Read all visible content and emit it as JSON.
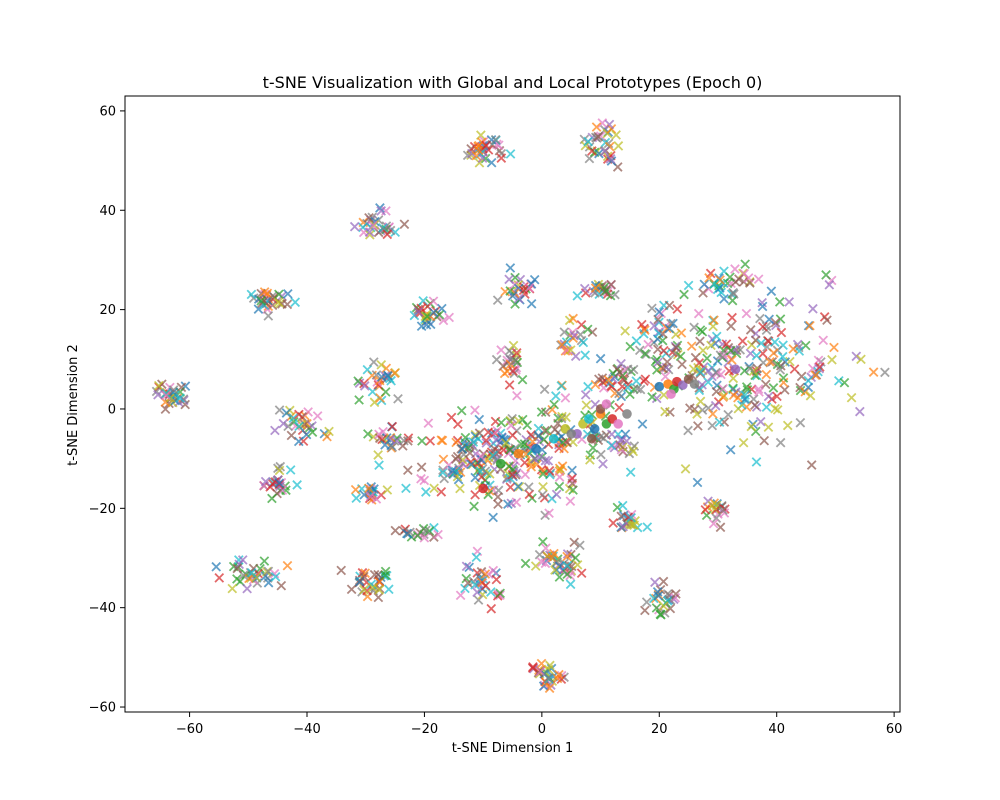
{
  "chart_data": {
    "type": "scatter",
    "title": "t-SNE Visualization with Global and Local Prototypes (Epoch 0)",
    "xlabel": "t-SNE Dimension 1",
    "ylabel": "t-SNE Dimension 2",
    "xlim": [
      -71,
      61
    ],
    "ylim": [
      -61,
      63
    ],
    "xticks": [
      -60,
      -40,
      -20,
      0,
      20,
      40,
      60
    ],
    "yticks": [
      -60,
      -40,
      -20,
      0,
      20,
      40,
      60
    ],
    "xtick_labels": [
      "−60",
      "−40",
      "−20",
      "0",
      "20",
      "40",
      "60"
    ],
    "ytick_labels": [
      "−60",
      "−40",
      "−20",
      "0",
      "20",
      "40",
      "60"
    ],
    "grid": false,
    "marker_local": "x",
    "marker_global": "o",
    "alpha": 0.7,
    "colors": [
      "#1f77b4",
      "#ff7f0e",
      "#2ca02c",
      "#d62728",
      "#9467bd",
      "#8c564b",
      "#e377c2",
      "#7f7f7f",
      "#bcbd22",
      "#17becf"
    ],
    "local_clusters": [
      {
        "cx": -9.5,
        "cy": 52.5,
        "sx": 1.5,
        "sy": 1.6,
        "n": 36
      },
      {
        "cx": 10.5,
        "cy": 53.5,
        "sx": 1.5,
        "sy": 2.4,
        "n": 34
      },
      {
        "cx": -28.5,
        "cy": 37.0,
        "sx": 2.2,
        "sy": 1.2,
        "n": 30
      },
      {
        "cx": -46.0,
        "cy": 22.0,
        "sx": 2.0,
        "sy": 1.6,
        "n": 30
      },
      {
        "cx": -63.0,
        "cy": 3.0,
        "sx": 1.6,
        "sy": 1.5,
        "n": 32
      },
      {
        "cx": -28.0,
        "cy": 6.0,
        "sx": 2.0,
        "sy": 1.8,
        "n": 30
      },
      {
        "cx": -41.0,
        "cy": -3.0,
        "sx": 1.8,
        "sy": 1.6,
        "n": 30
      },
      {
        "cx": -45.0,
        "cy": -15.0,
        "sx": 1.3,
        "sy": 1.3,
        "n": 26
      },
      {
        "cx": -48.0,
        "cy": -33.0,
        "sx": 2.4,
        "sy": 1.5,
        "n": 36
      },
      {
        "cx": -29.0,
        "cy": -35.0,
        "sx": 1.8,
        "sy": 1.7,
        "n": 32
      },
      {
        "cx": -19.0,
        "cy": 19.0,
        "sx": 1.8,
        "sy": 1.0,
        "n": 28
      },
      {
        "cx": -4.0,
        "cy": 23.5,
        "sx": 1.4,
        "sy": 1.4,
        "n": 26
      },
      {
        "cx": 9.5,
        "cy": 24.0,
        "sx": 2.0,
        "sy": 1.0,
        "n": 22
      },
      {
        "cx": -5.5,
        "cy": 9.5,
        "sx": 1.4,
        "sy": 1.7,
        "n": 24
      },
      {
        "cx": 6.0,
        "cy": 14.0,
        "sx": 1.6,
        "sy": 1.4,
        "n": 22
      },
      {
        "cx": -30.0,
        "cy": -17.0,
        "sx": 1.3,
        "sy": 1.0,
        "n": 20
      },
      {
        "cx": -26.0,
        "cy": -6.0,
        "sx": 2.2,
        "sy": 1.2,
        "n": 24
      },
      {
        "cx": -21.0,
        "cy": -25.0,
        "sx": 1.8,
        "sy": 0.8,
        "n": 18
      },
      {
        "cx": -10.0,
        "cy": -35.0,
        "sx": 1.5,
        "sy": 2.2,
        "n": 34
      },
      {
        "cx": 1.5,
        "cy": -30.0,
        "sx": 1.6,
        "sy": 1.6,
        "n": 24
      },
      {
        "cx": 4.0,
        "cy": -32.0,
        "sx": 1.3,
        "sy": 1.2,
        "n": 18
      },
      {
        "cx": 1.0,
        "cy": -53.5,
        "sx": 1.6,
        "sy": 1.3,
        "n": 32
      },
      {
        "cx": 20.5,
        "cy": -38.5,
        "sx": 1.2,
        "sy": 1.8,
        "n": 26
      },
      {
        "cx": 14.0,
        "cy": -22.0,
        "sx": 1.7,
        "sy": 1.3,
        "n": 22
      },
      {
        "cx": 29.5,
        "cy": -20.5,
        "sx": 1.3,
        "sy": 1.3,
        "n": 20
      },
      {
        "cx": 13.0,
        "cy": -8.0,
        "sx": 2.3,
        "sy": 1.8,
        "n": 26
      },
      {
        "cx": 13.0,
        "cy": 6.0,
        "sx": 2.5,
        "sy": 2.5,
        "n": 40
      },
      {
        "cx": -7.0,
        "cy": -10.0,
        "sx": 7.5,
        "sy": 4.5,
        "n": 230
      },
      {
        "cx": 4.0,
        "cy": -2.0,
        "sx": 4.0,
        "sy": 4.0,
        "n": 40
      },
      {
        "cx": 34.0,
        "cy": 8.0,
        "sx": 8.5,
        "sy": 7.5,
        "n": 250
      },
      {
        "cx": 20.0,
        "cy": 14.0,
        "sx": 2.0,
        "sy": 4.0,
        "n": 36
      },
      {
        "cx": 31.0,
        "cy": 25.5,
        "sx": 2.5,
        "sy": 1.5,
        "n": 28
      }
    ],
    "global_prototypes": [
      {
        "x": 20,
        "y": 4.5
      },
      {
        "x": 21.5,
        "y": 5
      },
      {
        "x": 22.5,
        "y": 4
      },
      {
        "x": 23,
        "y": 5.5
      },
      {
        "x": 24,
        "y": 4.8
      },
      {
        "x": 25,
        "y": 6
      },
      {
        "x": 22,
        "y": 3
      },
      {
        "x": 26,
        "y": 5
      },
      {
        "x": 7,
        "y": -3
      },
      {
        "x": 8,
        "y": -2
      },
      {
        "x": 9,
        "y": -4
      },
      {
        "x": 10,
        "y": -1
      },
      {
        "x": 11,
        "y": -3
      },
      {
        "x": 12,
        "y": -2
      },
      {
        "x": 6,
        "y": -5
      },
      {
        "x": 8.5,
        "y": -6
      },
      {
        "x": 13,
        "y": -3
      },
      {
        "x": 14.5,
        "y": -1
      },
      {
        "x": 4,
        "y": -4
      },
      {
        "x": 2,
        "y": -6
      },
      {
        "x": -1,
        "y": -8
      },
      {
        "x": -4,
        "y": -9
      },
      {
        "x": -7,
        "y": -11
      },
      {
        "x": -10,
        "y": -16
      },
      {
        "x": 33,
        "y": 8
      },
      {
        "x": 10,
        "y": 0
      },
      {
        "x": 11,
        "y": 1
      },
      {
        "x": 5,
        "y": -5
      }
    ]
  }
}
